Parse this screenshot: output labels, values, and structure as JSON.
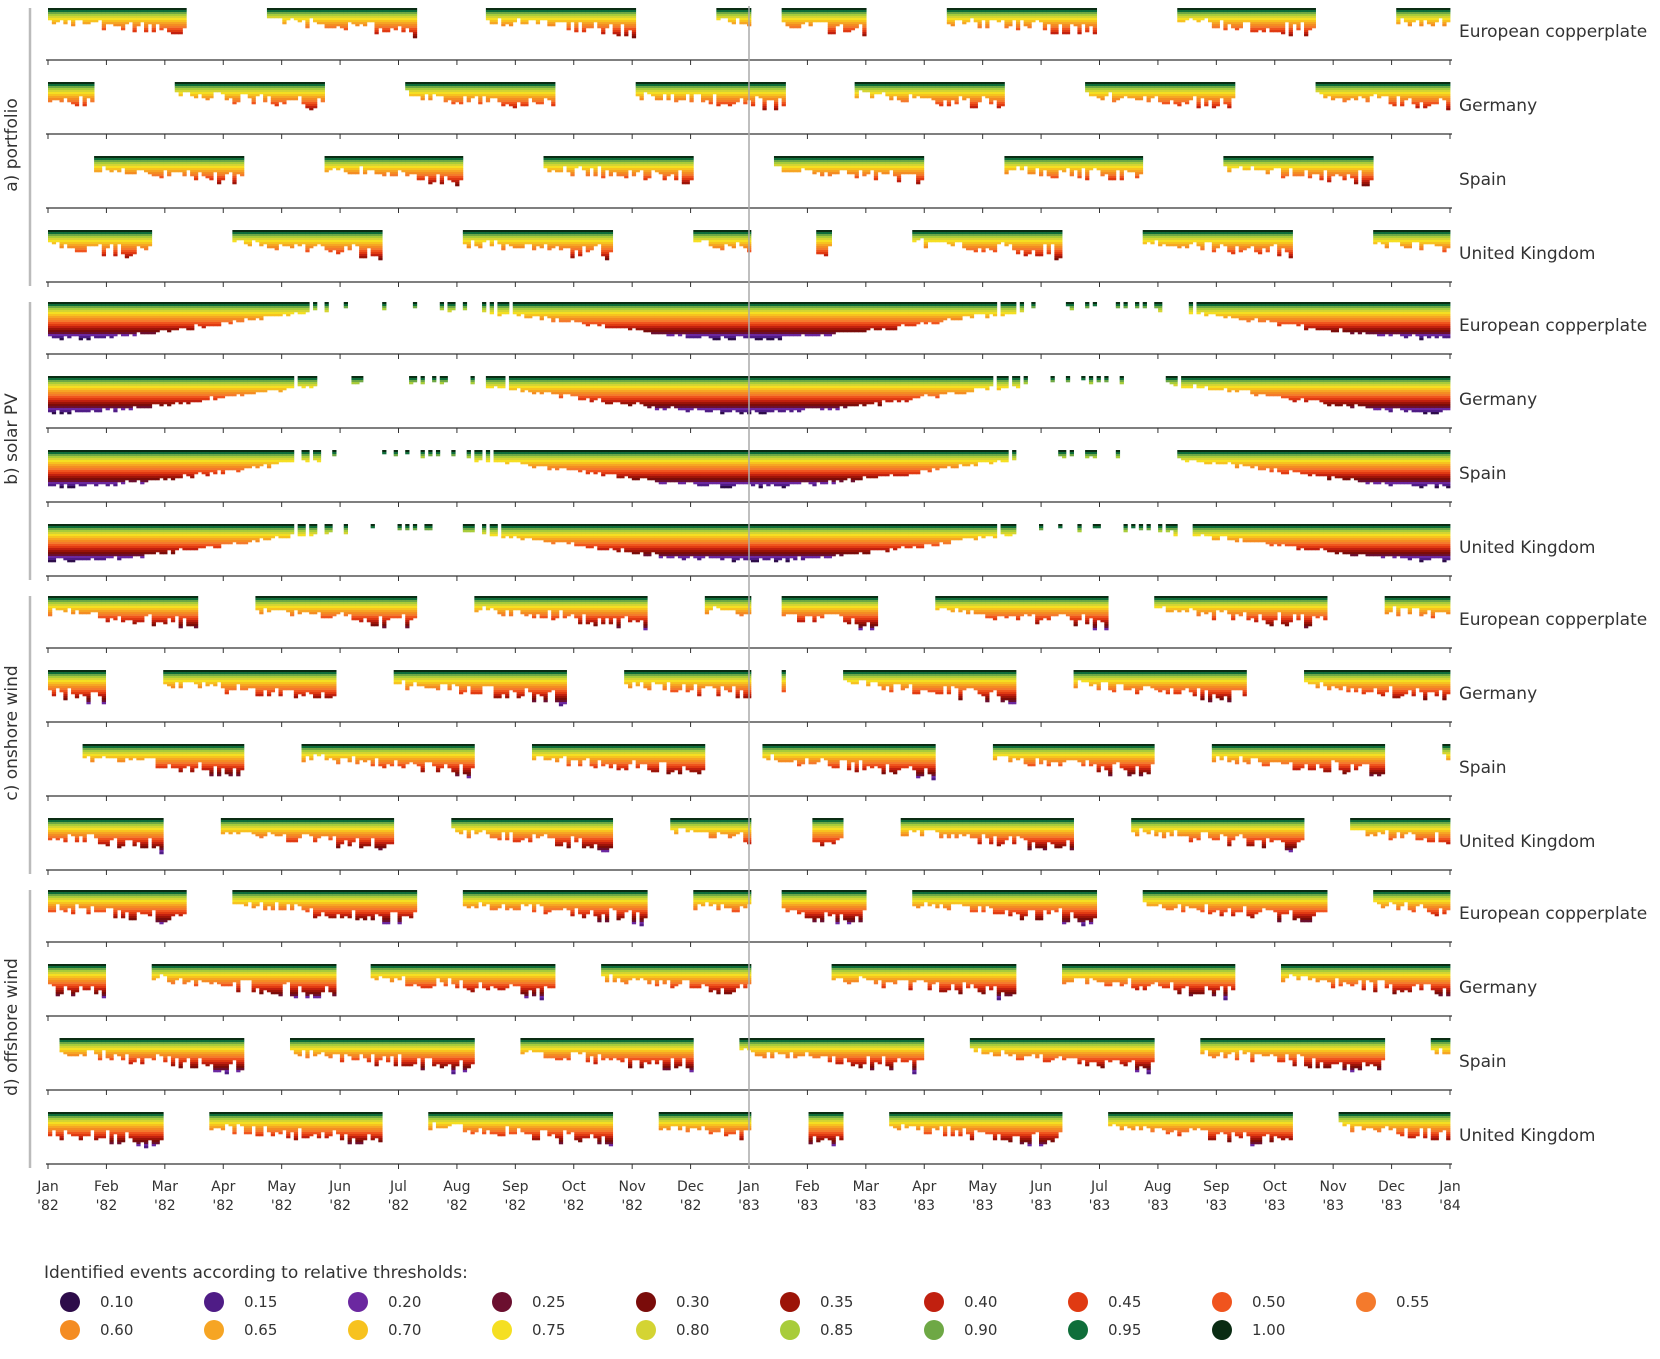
{
  "chart_data": {
    "type": "event-raster",
    "x_ticks": [
      [
        "Jan",
        "'82"
      ],
      [
        "Feb",
        "'82"
      ],
      [
        "Mar",
        "'82"
      ],
      [
        "Apr",
        "'82"
      ],
      [
        "May",
        "'82"
      ],
      [
        "Jun",
        "'82"
      ],
      [
        "Jul",
        "'82"
      ],
      [
        "Aug",
        "'82"
      ],
      [
        "Sep",
        "'82"
      ],
      [
        "Oct",
        "'82"
      ],
      [
        "Nov",
        "'82"
      ],
      [
        "Dec",
        "'82"
      ],
      [
        "Jan",
        "'83"
      ],
      [
        "Feb",
        "'83"
      ],
      [
        "Mar",
        "'83"
      ],
      [
        "Apr",
        "'83"
      ],
      [
        "May",
        "'83"
      ],
      [
        "Jun",
        "'83"
      ],
      [
        "Jul",
        "'83"
      ],
      [
        "Aug",
        "'83"
      ],
      [
        "Sep",
        "'83"
      ],
      [
        "Oct",
        "'83"
      ],
      [
        "Nov",
        "'83"
      ],
      [
        "Dec",
        "'83"
      ],
      [
        "Jan",
        "'84"
      ]
    ],
    "panels": [
      {
        "label": "a) portfolio",
        "key": "portfolio",
        "rows": [
          "European copperplate",
          "Germany",
          "Spain",
          "United Kingdom"
        ]
      },
      {
        "label": "b) solar PV",
        "key": "solar",
        "rows": [
          "European copperplate",
          "Germany",
          "Spain",
          "United Kingdom"
        ]
      },
      {
        "label": "c) onshore wind",
        "key": "onshore",
        "rows": [
          "European copperplate",
          "Germany",
          "Spain",
          "United Kingdom"
        ]
      },
      {
        "label": "d) offshore wind",
        "key": "offshore",
        "rows": [
          "European copperplate",
          "Germany",
          "Spain",
          "United Kingdom"
        ]
      }
    ],
    "year_divider": "Jan '83",
    "legend_title": "Identified events according to relative thresholds:",
    "thresholds": [
      "0.10",
      "0.15",
      "0.20",
      "0.25",
      "0.30",
      "0.35",
      "0.40",
      "0.45",
      "0.50",
      "0.55",
      "0.60",
      "0.65",
      "0.70",
      "0.75",
      "0.80",
      "0.85",
      "0.90",
      "0.95",
      "1.00"
    ],
    "colors": [
      "#2d0c4a",
      "#4f1c86",
      "#6b28a0",
      "#6b0f2f",
      "#7a0c0a",
      "#9c1408",
      "#c1200f",
      "#e03a12",
      "#f0541e",
      "#f47a2c",
      "#f48c22",
      "#f6a524",
      "#f7c21f",
      "#f5df22",
      "#d4d433",
      "#a8cc3a",
      "#6ea845",
      "#0f6e3a",
      "#0a2c13"
    ]
  }
}
